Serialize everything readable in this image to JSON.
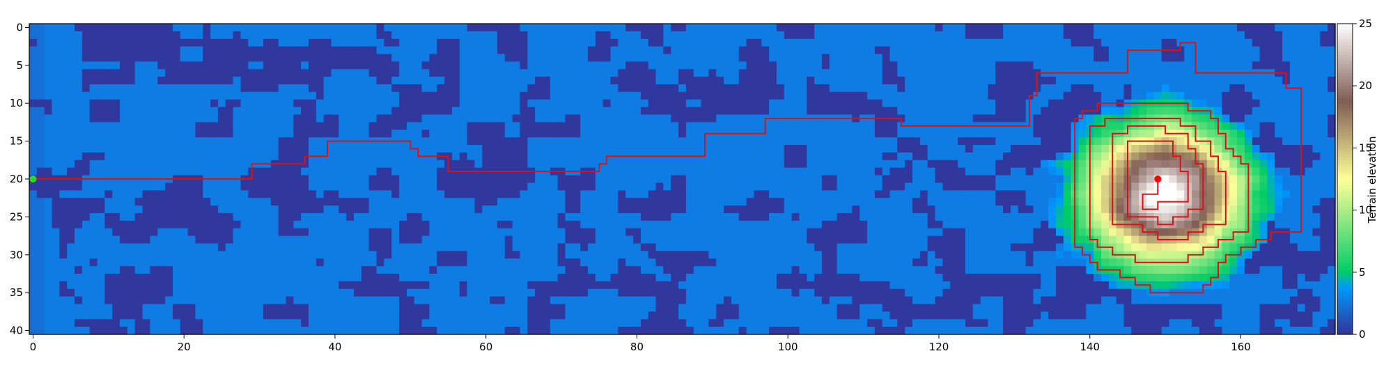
{
  "chart_data": {
    "type": "heatmap",
    "title": "",
    "xlabel": "",
    "ylabel": "",
    "colorbar": {
      "label": "Terrain elevation",
      "range": [
        0,
        25
      ],
      "ticks": [
        "0",
        "5",
        "10",
        "15",
        "20",
        "25"
      ],
      "colormap": "terrain"
    },
    "x_range": [
      0,
      172
    ],
    "y_range": [
      0,
      40
    ],
    "x_ticks": [
      "0",
      "20",
      "40",
      "60",
      "80",
      "100",
      "120",
      "140",
      "160"
    ],
    "y_ticks": [
      "0",
      "5",
      "10",
      "15",
      "20",
      "25",
      "30",
      "35",
      "40"
    ],
    "grid": false,
    "start_marker": {
      "x": 0,
      "y": 20,
      "color": "#22dd22"
    },
    "goal_marker": {
      "x": 149,
      "y": 20,
      "color": "#ff0000"
    },
    "path_color": "#dd1111",
    "path": [
      [
        0,
        20
      ],
      [
        29,
        20
      ],
      [
        29,
        18
      ],
      [
        36,
        18
      ],
      [
        36,
        17
      ],
      [
        39,
        17
      ],
      [
        39,
        15
      ],
      [
        50,
        15
      ],
      [
        50,
        16
      ],
      [
        51,
        16
      ],
      [
        51,
        17
      ],
      [
        55,
        17
      ],
      [
        55,
        19
      ],
      [
        75,
        19
      ],
      [
        75,
        18
      ],
      [
        76,
        18
      ],
      [
        76,
        17
      ],
      [
        89,
        17
      ],
      [
        89,
        14
      ],
      [
        97,
        14
      ],
      [
        97,
        12
      ],
      [
        115,
        12
      ],
      [
        115,
        13
      ],
      [
        132,
        13
      ],
      [
        132,
        9
      ],
      [
        133,
        9
      ],
      [
        133,
        6
      ],
      [
        145,
        6
      ],
      [
        145,
        3
      ],
      [
        152,
        3
      ],
      [
        152,
        2
      ],
      [
        154,
        2
      ],
      [
        154,
        6
      ],
      [
        166,
        6
      ],
      [
        166,
        8
      ],
      [
        168,
        8
      ],
      [
        168,
        27
      ],
      [
        164,
        27
      ],
      [
        164,
        28
      ],
      [
        162,
        28
      ],
      [
        162,
        29
      ],
      [
        160,
        29
      ],
      [
        160,
        30
      ],
      [
        158,
        30
      ],
      [
        158,
        31
      ],
      [
        157,
        31
      ],
      [
        157,
        33
      ],
      [
        156,
        33
      ],
      [
        156,
        34
      ],
      [
        155,
        34
      ],
      [
        155,
        35
      ],
      [
        148,
        35
      ],
      [
        148,
        34
      ],
      [
        146,
        34
      ],
      [
        146,
        33
      ],
      [
        144,
        33
      ],
      [
        144,
        32
      ],
      [
        141,
        32
      ],
      [
        141,
        31
      ],
      [
        140,
        31
      ],
      [
        140,
        30
      ],
      [
        139,
        30
      ],
      [
        139,
        29
      ],
      [
        138,
        29
      ],
      [
        138,
        12
      ],
      [
        139,
        12
      ],
      [
        139,
        11
      ],
      [
        141,
        11
      ],
      [
        141,
        10
      ],
      [
        153,
        10
      ],
      [
        153,
        11
      ],
      [
        156,
        11
      ],
      [
        156,
        12
      ],
      [
        157,
        12
      ],
      [
        157,
        14
      ],
      [
        158,
        14
      ],
      [
        158,
        16
      ],
      [
        159,
        16
      ],
      [
        159,
        17
      ],
      [
        160,
        17
      ],
      [
        160,
        18
      ],
      [
        161,
        18
      ],
      [
        161,
        27
      ],
      [
        159,
        27
      ],
      [
        159,
        28
      ],
      [
        157,
        28
      ],
      [
        157,
        29
      ],
      [
        155,
        29
      ],
      [
        155,
        30
      ],
      [
        153,
        30
      ],
      [
        153,
        31
      ],
      [
        146,
        31
      ],
      [
        146,
        30
      ],
      [
        143,
        30
      ],
      [
        143,
        29
      ],
      [
        141,
        29
      ],
      [
        141,
        28
      ],
      [
        140,
        28
      ],
      [
        140,
        13
      ],
      [
        142,
        13
      ],
      [
        142,
        12
      ],
      [
        152,
        12
      ],
      [
        152,
        13
      ],
      [
        154,
        13
      ],
      [
        154,
        15
      ],
      [
        156,
        15
      ],
      [
        156,
        17
      ],
      [
        157,
        17
      ],
      [
        157,
        19
      ],
      [
        158,
        19
      ],
      [
        158,
        26
      ],
      [
        155,
        26
      ],
      [
        155,
        27
      ],
      [
        153,
        27
      ],
      [
        153,
        28
      ],
      [
        149,
        28
      ],
      [
        149,
        27
      ],
      [
        147,
        27
      ],
      [
        147,
        26
      ],
      [
        143,
        26
      ],
      [
        143,
        14
      ],
      [
        145,
        14
      ],
      [
        145,
        13
      ],
      [
        150,
        13
      ],
      [
        150,
        14
      ],
      [
        153,
        14
      ],
      [
        153,
        16
      ],
      [
        154,
        16
      ],
      [
        154,
        18
      ],
      [
        155,
        18
      ],
      [
        155,
        24
      ],
      [
        153,
        24
      ],
      [
        153,
        25
      ],
      [
        151,
        25
      ],
      [
        151,
        26
      ],
      [
        149,
        26
      ],
      [
        149,
        25
      ],
      [
        145,
        25
      ],
      [
        145,
        15
      ],
      [
        151,
        15
      ],
      [
        151,
        17
      ],
      [
        152,
        17
      ],
      [
        152,
        19
      ],
      [
        153,
        19
      ],
      [
        153,
        23
      ],
      [
        149,
        23
      ],
      [
        149,
        24
      ],
      [
        147,
        24
      ],
      [
        147,
        22
      ],
      [
        149,
        22
      ],
      [
        149,
        20
      ]
    ]
  }
}
